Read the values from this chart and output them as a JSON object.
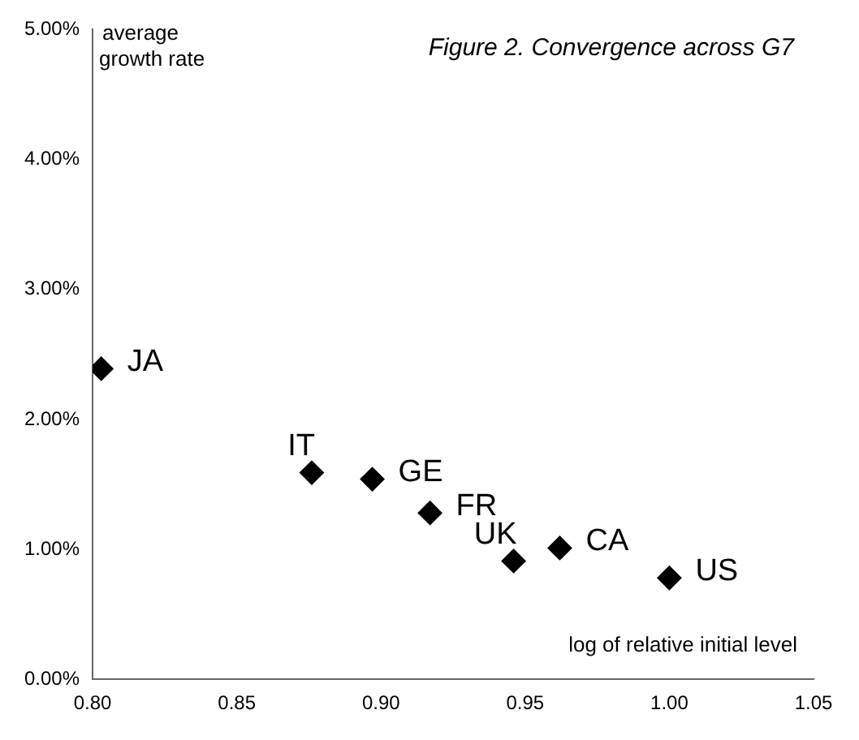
{
  "chart_data": {
    "type": "scatter",
    "title": "Figure 2. Convergence across G7",
    "xlabel": "log of relative initial level",
    "ylabel": "average growth rate",
    "x": [
      0.803,
      0.876,
      0.897,
      0.917,
      0.946,
      0.962,
      1.0
    ],
    "series": [
      {
        "color": "#000000",
        "values": [
          2.39,
          1.59,
          1.54,
          1.28,
          0.91,
          1.01,
          0.78
        ]
      }
    ],
    "annotations": [
      {
        "text": "JA",
        "x": 0.803,
        "y": 2.39
      },
      {
        "text": "IT",
        "x": 0.876,
        "y": 1.59
      },
      {
        "text": "GE",
        "x": 0.897,
        "y": 1.54
      },
      {
        "text": "FR",
        "x": 0.917,
        "y": 1.28
      },
      {
        "text": "UK",
        "x": 0.946,
        "y": 0.91
      },
      {
        "text": "CA",
        "x": 0.962,
        "y": 1.01
      },
      {
        "text": "US",
        "x": 1.0,
        "y": 0.78
      }
    ],
    "xlim": [
      0.8,
      1.05
    ],
    "xticks": [
      {
        "value": 0.8,
        "label": "0.80"
      },
      {
        "value": 0.85,
        "label": "0.85"
      },
      {
        "value": 0.9,
        "label": "0.90"
      },
      {
        "value": 0.95,
        "label": "0.95"
      },
      {
        "value": 1.0,
        "label": "1.00"
      },
      {
        "value": 1.05,
        "label": "1.05"
      }
    ],
    "ylim": [
      0,
      5
    ],
    "yticks": [
      {
        "value": 0,
        "label": "0.00%"
      },
      {
        "value": 1,
        "label": "1.00%"
      },
      {
        "value": 2,
        "label": "2.00%"
      },
      {
        "value": 3,
        "label": "3.00%"
      },
      {
        "value": 4,
        "label": "4.00%"
      },
      {
        "value": 5,
        "label": "5.00%"
      }
    ],
    "grid": false,
    "legend": false,
    "marker": "diamond"
  }
}
